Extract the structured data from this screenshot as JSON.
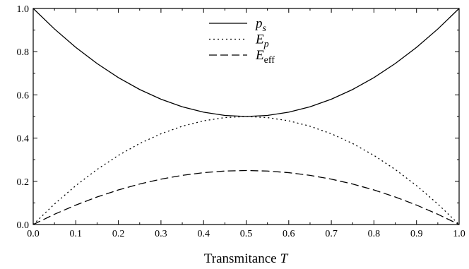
{
  "chart_data": {
    "type": "line",
    "title": "",
    "xlabel": "Transmitance",
    "xlabel_var": "T",
    "ylabel": "",
    "xlim": [
      0.0,
      1.0
    ],
    "ylim": [
      0.0,
      1.0
    ],
    "x_ticks": [
      "0.0",
      "0.1",
      "0.2",
      "0.3",
      "0.4",
      "0.5",
      "0.6",
      "0.7",
      "0.8",
      "0.9",
      "1.0"
    ],
    "y_ticks": [
      "0.0",
      "0.2",
      "0.4",
      "0.6",
      "0.8",
      "1.0"
    ],
    "grid": false,
    "legend_position": "top-center",
    "x": [
      0.0,
      0.05,
      0.1,
      0.15,
      0.2,
      0.25,
      0.3,
      0.35,
      0.4,
      0.45,
      0.5,
      0.55,
      0.6,
      0.65,
      0.7,
      0.75,
      0.8,
      0.85,
      0.9,
      0.95,
      1.0
    ],
    "series": [
      {
        "name": "p_s",
        "legend_main": "p",
        "legend_sub": "s",
        "style": "solid",
        "values": [
          1.0,
          0.905,
          0.82,
          0.745,
          0.68,
          0.625,
          0.58,
          0.545,
          0.52,
          0.505,
          0.5,
          0.505,
          0.52,
          0.545,
          0.58,
          0.625,
          0.68,
          0.745,
          0.82,
          0.905,
          1.0
        ]
      },
      {
        "name": "E_p",
        "legend_main": "E",
        "legend_sub": "p",
        "style": "dotted",
        "values": [
          0.0,
          0.095,
          0.18,
          0.255,
          0.32,
          0.375,
          0.42,
          0.455,
          0.48,
          0.495,
          0.5,
          0.495,
          0.48,
          0.455,
          0.42,
          0.375,
          0.32,
          0.255,
          0.18,
          0.095,
          0.0
        ]
      },
      {
        "name": "E_eff",
        "legend_main": "E",
        "legend_sub": "eff",
        "style": "dashed",
        "values": [
          0.0,
          0.0475,
          0.09,
          0.1275,
          0.16,
          0.1875,
          0.21,
          0.2275,
          0.24,
          0.2475,
          0.25,
          0.2475,
          0.24,
          0.2275,
          0.21,
          0.1875,
          0.16,
          0.1275,
          0.09,
          0.0475,
          0.0
        ]
      }
    ]
  }
}
